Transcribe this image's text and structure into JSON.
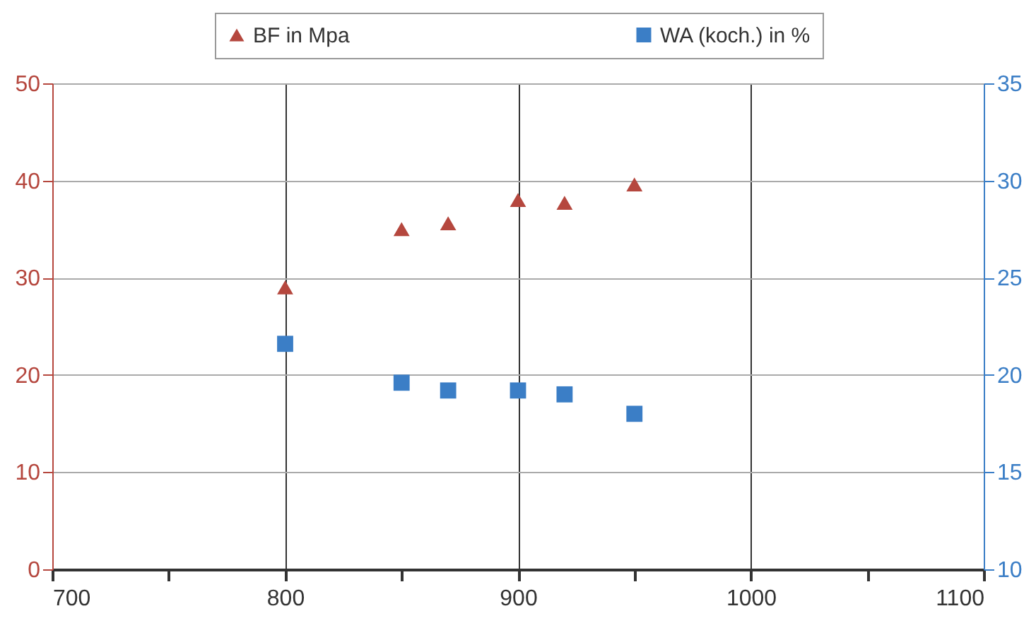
{
  "chart_data": {
    "type": "scatter",
    "xlim": [
      700,
      1100
    ],
    "xticks": [
      700,
      {
        "value": 750,
        "label": null
      },
      800,
      {
        "value": 850,
        "label": null
      },
      900,
      {
        "value": 950,
        "label": null
      },
      1000,
      {
        "value": 1050,
        "label": null
      },
      1100
    ],
    "ylim": [
      0,
      50
    ],
    "yticks": [
      0,
      10,
      20,
      30,
      40,
      50
    ],
    "y2lim": [
      10,
      35
    ],
    "y2ticks": [
      10,
      15,
      20,
      25,
      30,
      35
    ],
    "grid": true,
    "legend": "top",
    "series": [
      {
        "name": "BF in Mpa",
        "color": "#b5473e",
        "marker": "triangle",
        "x": [
          800,
          850,
          870,
          900,
          920,
          950
        ],
        "values": [
          29,
          35,
          35.6,
          38,
          37.7,
          39.6
        ]
      },
      {
        "name": "WA (koch.) in %",
        "color": "#3b7ec6",
        "marker": "square",
        "axis": "y2",
        "x": [
          800,
          850,
          870,
          900,
          920,
          950
        ],
        "values": [
          21.6,
          19.6,
          19.2,
          19.2,
          19.0,
          18.0
        ]
      }
    ]
  }
}
